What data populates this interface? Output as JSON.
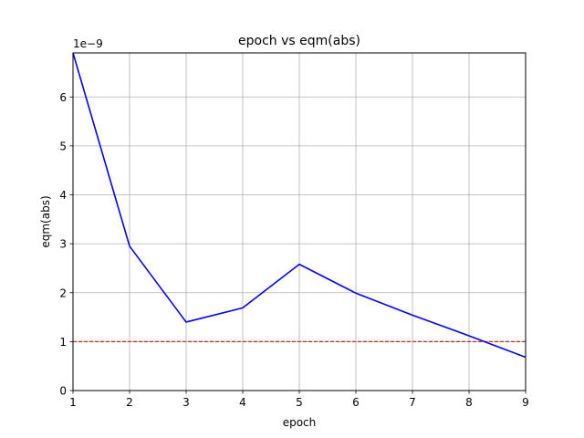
{
  "chart_data": {
    "type": "line",
    "title": "epoch vs eqm(abs)",
    "xlabel": "epoch",
    "ylabel": "eqm(abs)",
    "offset_text": "1e−9",
    "xlim": [
      1,
      9
    ],
    "ylim": [
      0,
      6.9
    ],
    "xticks": [
      1,
      2,
      3,
      4,
      5,
      6,
      7,
      8,
      9
    ],
    "yticks": [
      0,
      1,
      2,
      3,
      4,
      5,
      6
    ],
    "grid": true,
    "series": [
      {
        "x": [
          1,
          2,
          3,
          4,
          5,
          6,
          7,
          8,
          9
        ],
        "values": [
          6.9,
          2.95,
          1.4,
          1.69,
          2.58,
          1.99,
          1.54,
          1.12,
          0.68
        ],
        "color": "#0000ff",
        "style": "solid"
      }
    ],
    "reference_lines": [
      {
        "y": 1.0,
        "color": "#d62728",
        "style": "dashed"
      }
    ]
  }
}
